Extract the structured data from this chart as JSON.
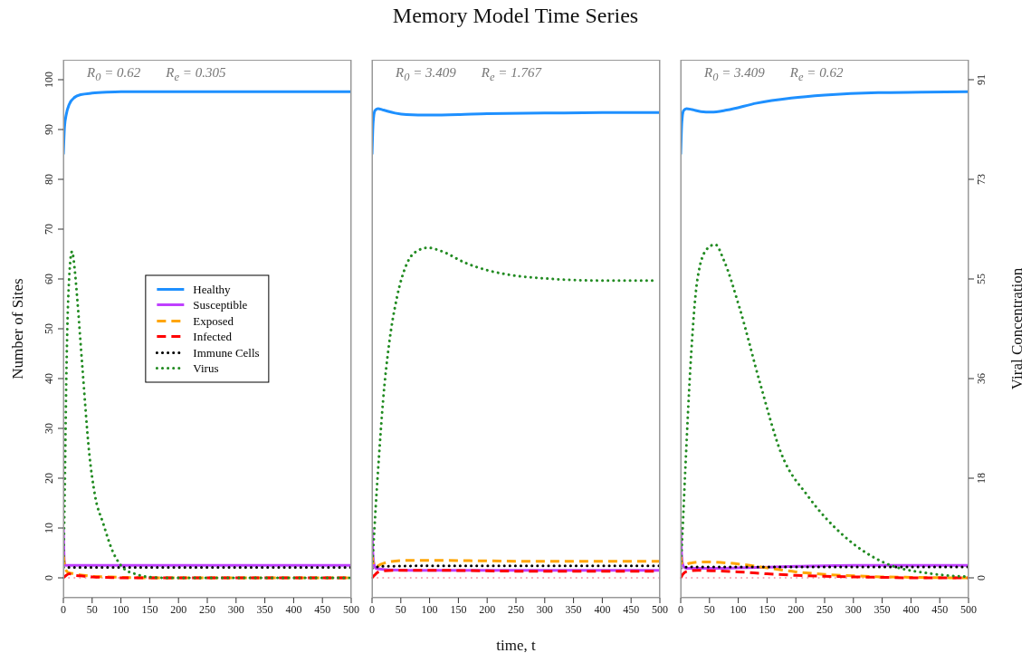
{
  "chart_data": [
    {
      "type": "line",
      "ylabel": "Number of Sites",
      "annotations": [
        "R$_{0}$ = 0.62",
        "R$_{e}$ = 0.305"
      ],
      "xlim": [
        0,
        500
      ],
      "xticks": [
        0,
        50,
        100,
        150,
        200,
        250,
        300,
        350,
        400,
        450,
        500
      ],
      "ylim": [
        -4,
        104
      ],
      "yticks": [
        0,
        10,
        20,
        30,
        40,
        50,
        60,
        70,
        80,
        90,
        100
      ],
      "y2lim": [
        -3.64,
        94.64
      ],
      "legend": "center",
      "ref_lines": [
        {
          "axis": "y",
          "value": 0,
          "color": "#f4a0b0",
          "line_style": "dotted"
        }
      ],
      "series": [
        {
          "name": "Healthy",
          "color": "#1e90ff",
          "line_style": "solid",
          "x": [
            0,
            2,
            5,
            10,
            20,
            30,
            50,
            75,
            100,
            150,
            200,
            300,
            400,
            500
          ],
          "values": [
            85,
            90.5,
            93,
            95,
            96.5,
            97,
            97.3,
            97.5,
            97.6,
            97.6,
            97.6,
            97.6,
            97.6,
            97.6
          ]
        },
        {
          "name": "Susceptible",
          "color": "#bf40ff",
          "line_style": "solid",
          "x": [
            0,
            1,
            2,
            4,
            10,
            100,
            200,
            300,
            400,
            500
          ],
          "values": [
            10,
            5,
            3,
            2.5,
            2.5,
            2.5,
            2.5,
            2.5,
            2.5,
            2.5
          ]
        },
        {
          "name": "Exposed",
          "color": "#ffa500",
          "line_style": "dashed",
          "x": [
            0,
            3,
            6,
            10,
            20,
            35,
            50,
            75,
            100,
            150,
            200,
            300,
            400,
            500
          ],
          "values": [
            4.5,
            2,
            1.3,
            1,
            0.8,
            0.5,
            0.3,
            0.2,
            0.1,
            0,
            0,
            0,
            0,
            0
          ]
        },
        {
          "name": "Infected",
          "color": "#ff0000",
          "line_style": "dashed",
          "x": [
            0,
            5,
            10,
            15,
            20,
            30,
            50,
            75,
            100,
            150,
            200,
            300,
            400,
            500
          ],
          "values": [
            0,
            0.5,
            0.8,
            0.7,
            0.5,
            0.4,
            0.2,
            0.1,
            0,
            0,
            0,
            0,
            0,
            0
          ]
        },
        {
          "name": "Immune Cells",
          "color": "#000000",
          "line_style": "dotted",
          "x": [
            0,
            100,
            200,
            300,
            400,
            500
          ],
          "values": [
            2.1,
            2.1,
            2.1,
            2.1,
            2.1,
            2.1
          ]
        },
        {
          "name": "Virus",
          "color": "#228b22",
          "line_style": "dotted",
          "axis": "y2",
          "x": [
            0,
            2,
            5.5,
            8.5,
            15,
            20,
            24,
            33,
            45,
            55,
            69,
            85,
            105,
            125,
            145,
            175,
            200,
            300,
            400,
            500
          ],
          "values": [
            2,
            13.1,
            38.5,
            51.1,
            59.6,
            56,
            51.1,
            38.5,
            22.7,
            15,
            10,
            5,
            1.7,
            0.7,
            0.2,
            0,
            0,
            0,
            0,
            0
          ]
        }
      ]
    },
    {
      "type": "line",
      "title": "Memory Model Time Series",
      "xlabel": "time, t",
      "annotations": [
        "R$_{0}$ = 3.409",
        "R$_{e}$ = 1.767"
      ],
      "xlim": [
        0,
        500
      ],
      "xticks": [
        0,
        50,
        100,
        150,
        200,
        250,
        300,
        350,
        400,
        450,
        500
      ],
      "ylim": [
        -4,
        104
      ],
      "y2lim": [
        -3.64,
        94.64
      ],
      "tick_labels": "x",
      "ref_lines": [
        {
          "axis": "y",
          "value": 0,
          "color": "#f4a0b0",
          "line_style": "dotted"
        }
      ],
      "series": [
        {
          "color": "#1e90ff",
          "line_style": "solid",
          "x": [
            0,
            2,
            5,
            10,
            20,
            40,
            60,
            100,
            150,
            200,
            300,
            400,
            500
          ],
          "values": [
            85,
            91.5,
            93.8,
            94.2,
            93.9,
            93.3,
            93.0,
            92.9,
            93.0,
            93.2,
            93.3,
            93.4,
            93.4
          ]
        },
        {
          "color": "#bf40ff",
          "line_style": "solid",
          "x": [
            0,
            1,
            3,
            6,
            10,
            30,
            100,
            200,
            300,
            400,
            500
          ],
          "values": [
            10,
            6,
            3,
            2,
            1.8,
            1.6,
            1.5,
            1.5,
            1.5,
            1.5,
            1.5
          ]
        },
        {
          "color": "#ffa500",
          "line_style": "dashed",
          "x": [
            0,
            3,
            6,
            15,
            30,
            60,
            100,
            200,
            300,
            400,
            500
          ],
          "values": [
            4.5,
            2.5,
            2.2,
            2.7,
            3.2,
            3.5,
            3.5,
            3.4,
            3.3,
            3.3,
            3.3
          ]
        },
        {
          "color": "#ff0000",
          "line_style": "dashed",
          "x": [
            0,
            5,
            10,
            20,
            40,
            100,
            200,
            300,
            400,
            500
          ],
          "values": [
            0,
            0.6,
            1.1,
            1.4,
            1.5,
            1.5,
            1.4,
            1.3,
            1.3,
            1.3
          ]
        },
        {
          "color": "#000000",
          "line_style": "dotted",
          "x": [
            0,
            5,
            20,
            100,
            200,
            300,
            400,
            500
          ],
          "values": [
            1.9,
            2.1,
            2.3,
            2.4,
            2.4,
            2.4,
            2.4,
            2.4
          ]
        },
        {
          "color": "#228b22",
          "line_style": "dotted",
          "axis": "y2",
          "x": [
            0,
            2,
            6.5,
            12,
            19,
            30,
            43,
            61,
            80,
            97,
            120,
            163,
            200,
            236,
            300,
            350,
            400,
            450,
            495
          ],
          "values": [
            2,
            5,
            13.1,
            22,
            32.1,
            43,
            51.1,
            57.5,
            59.8,
            60.3,
            59.7,
            57.5,
            56.2,
            55.4,
            54.7,
            54.4,
            54.3,
            54.3,
            54.3
          ]
        }
      ]
    },
    {
      "type": "line",
      "y2label": "Viral Concentration",
      "annotations": [
        "R$_{0}$ = 3.409",
        "R$_{e}$ = 0.62"
      ],
      "xlim": [
        0,
        500
      ],
      "xticks": [
        0,
        50,
        100,
        150,
        200,
        250,
        300,
        350,
        400,
        450,
        500
      ],
      "ylim": [
        -4,
        104
      ],
      "y2lim": [
        -3.64,
        94.64
      ],
      "y2ticks": [
        0,
        {
          "value": 18.2,
          "label": "18"
        },
        {
          "value": 36.4,
          "label": "36"
        },
        {
          "value": 54.6,
          "label": "55"
        },
        {
          "value": 72.8,
          "label": "73"
        },
        91
      ],
      "ref_lines": [
        {
          "axis": "y",
          "value": 0,
          "color": "#f4a0b0",
          "line_style": "dotted"
        }
      ],
      "series": [
        {
          "color": "#1e90ff",
          "line_style": "solid",
          "x": [
            0,
            2,
            5,
            10,
            20,
            35,
            53,
            80,
            132,
            192,
            250,
            343,
            420,
            500
          ],
          "values": [
            85,
            91.5,
            93.8,
            94.2,
            94.0,
            93.6,
            93.5,
            93.9,
            95.3,
            96.3,
            96.9,
            97.4,
            97.5,
            97.6
          ]
        },
        {
          "color": "#bf40ff",
          "line_style": "solid",
          "x": [
            0,
            1,
            3,
            6,
            10,
            50,
            100,
            200,
            300,
            400,
            500
          ],
          "values": [
            10,
            6,
            3,
            2.1,
            1.9,
            1.9,
            2.0,
            2.3,
            2.5,
            2.5,
            2.5
          ]
        },
        {
          "color": "#ffa500",
          "line_style": "dashed",
          "x": [
            0,
            3,
            6,
            15,
            40,
            80,
            120,
            150,
            200,
            250,
            300,
            350,
            400,
            500
          ],
          "values": [
            4.5,
            2.7,
            2.6,
            2.9,
            3.2,
            3,
            2.5,
            2,
            1.2,
            0.7,
            0.4,
            0.2,
            0.1,
            0
          ]
        },
        {
          "color": "#ff0000",
          "line_style": "dashed",
          "x": [
            0,
            5,
            15,
            30,
            60,
            100,
            150,
            200,
            250,
            300,
            350,
            400,
            500
          ],
          "values": [
            0,
            0.9,
            1.4,
            1.5,
            1.4,
            1.2,
            0.8,
            0.5,
            0.3,
            0.2,
            0.1,
            0,
            0
          ]
        },
        {
          "color": "#000000",
          "line_style": "dotted",
          "x": [
            0,
            5,
            20,
            100,
            200,
            300,
            400,
            500
          ],
          "values": [
            1.9,
            2.1,
            2.2,
            2.2,
            2.2,
            2.2,
            2.2,
            2.2
          ]
        },
        {
          "color": "#228b22",
          "line_style": "dotted",
          "axis": "y2",
          "x": [
            0,
            3,
            8,
            17,
            29,
            45,
            60,
            75,
            102,
            138,
            174,
            222,
            283,
            355,
            433,
            480,
            500
          ],
          "values": [
            2,
            8,
            19.7,
            38.7,
            54.5,
            60,
            60.9,
            58,
            49.4,
            35.5,
            22.9,
            14.8,
            7.7,
            2.7,
            0.8,
            0.3,
            0.2
          ]
        }
      ]
    }
  ]
}
